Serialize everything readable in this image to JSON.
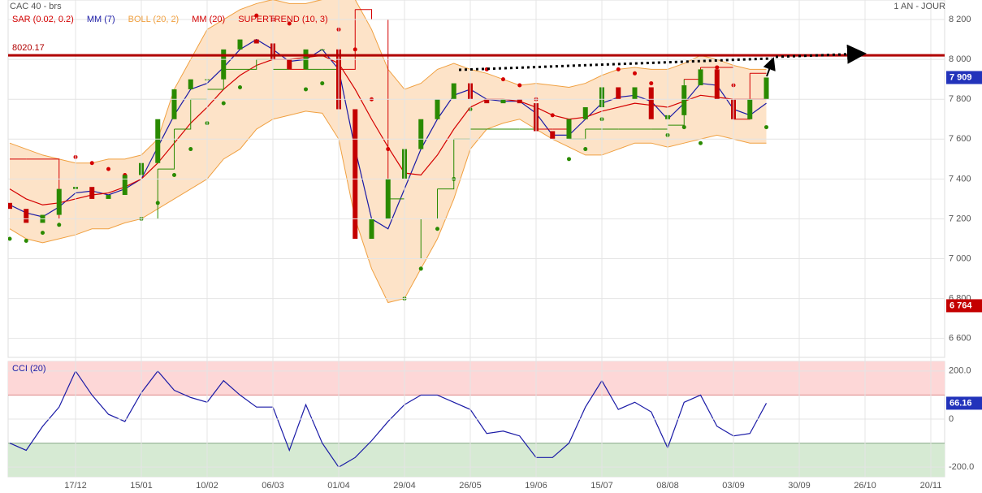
{
  "chart_data": [
    {
      "type": "candlestick",
      "title": "CAC 40 - brs",
      "subtitle": "1 AN - JOUR",
      "categories": [
        null,
        null,
        null,
        null,
        "17/12",
        null,
        null,
        null,
        "15/01",
        null,
        null,
        null,
        "10/02",
        null,
        null,
        null,
        "06/03",
        null,
        null,
        null,
        "01/04",
        null,
        null,
        null,
        "29/04",
        null,
        null,
        null,
        "26/05",
        null,
        null,
        null,
        "19/06",
        null,
        null,
        null,
        "15/07",
        null,
        null,
        null,
        "08/08",
        null,
        null,
        null,
        "03/09",
        null,
        null,
        null,
        "30/09",
        null,
        null,
        null,
        "26/10",
        null,
        null,
        null,
        "20/11"
      ],
      "open": [
        7280,
        7250,
        7180,
        7220,
        7350,
        7360,
        7300,
        7320,
        7420,
        7480,
        7700,
        7850,
        7900,
        7900,
        8050,
        8100,
        8080,
        8000,
        7950,
        8050,
        8050,
        7750,
        7100,
        7200,
        7400,
        7550,
        7700,
        7800,
        7880,
        7800,
        7780,
        7800,
        7780,
        7640,
        7600,
        7700,
        7760,
        7860,
        7800,
        7860,
        7700,
        7720,
        7870,
        7950,
        7800,
        7700,
        7800,
        null,
        null,
        null,
        null,
        null,
        null,
        null,
        null,
        null,
        null
      ],
      "close": [
        7250,
        7180,
        7220,
        7350,
        7360,
        7300,
        7320,
        7420,
        7480,
        7700,
        7850,
        7900,
        7900,
        8050,
        8100,
        8080,
        8000,
        7950,
        8050,
        8050,
        7750,
        7100,
        7200,
        7400,
        7550,
        7700,
        7800,
        7880,
        7800,
        7780,
        7800,
        7780,
        7640,
        7600,
        7700,
        7760,
        7860,
        7800,
        7860,
        7700,
        7720,
        7870,
        7950,
        7800,
        7700,
        7800,
        7909,
        null,
        null,
        null,
        null,
        null,
        null,
        null,
        null,
        null,
        null
      ],
      "up_color": "#2a8a00",
      "down_color": "#c40000",
      "series": [
        {
          "name": "SAR (0.02, 0.2)",
          "style": "dots",
          "color": "#d40000",
          "below_color": "#2a8a00",
          "values": [
            7100,
            7090,
            7130,
            7170,
            7510,
            7480,
            7450,
            7420,
            7200,
            7280,
            7420,
            7550,
            7680,
            7780,
            7860,
            8220,
            8200,
            8180,
            7850,
            7880,
            8150,
            8050,
            7800,
            7550,
            6800,
            6950,
            7150,
            7400,
            7750,
            7950,
            7900,
            7870,
            7800,
            7720,
            7500,
            7550,
            7700,
            7950,
            7930,
            7880,
            7620,
            7660,
            7580,
            7960,
            7870,
            7790,
            7660,
            null,
            null,
            null,
            null,
            null,
            null,
            null,
            null,
            null,
            null
          ]
        },
        {
          "name": "MM (7)",
          "style": "line",
          "color": "#1a1aa6",
          "values": [
            7270,
            7230,
            7210,
            7260,
            7330,
            7340,
            7320,
            7350,
            7400,
            7560,
            7720,
            7850,
            7880,
            7960,
            8050,
            8100,
            8050,
            7990,
            8000,
            8050,
            7950,
            7550,
            7200,
            7150,
            7350,
            7550,
            7700,
            7820,
            7850,
            7800,
            7790,
            7790,
            7730,
            7620,
            7620,
            7700,
            7780,
            7810,
            7820,
            7790,
            7700,
            7780,
            7880,
            7870,
            7750,
            7720,
            7780,
            null,
            null,
            null,
            null,
            null,
            null,
            null,
            null,
            null,
            null
          ]
        },
        {
          "name": "BOLL (20, 2)",
          "style": "band",
          "color": "#f0a040",
          "fill": "#fde3c8",
          "upper": [
            7580,
            7550,
            7520,
            7500,
            7480,
            7480,
            7500,
            7500,
            7520,
            7600,
            7850,
            8000,
            8150,
            8200,
            8250,
            8280,
            8300,
            8280,
            8280,
            8300,
            8300,
            8300,
            8150,
            7950,
            7850,
            7880,
            7950,
            7980,
            7950,
            7930,
            7900,
            7870,
            7880,
            7870,
            7860,
            7880,
            7920,
            7950,
            7960,
            7950,
            7950,
            7980,
            8020,
            8000,
            7970,
            7950,
            7950,
            null,
            null,
            null,
            null,
            null,
            null,
            null,
            null,
            null,
            null
          ],
          "lower": [
            7150,
            7100,
            7080,
            7100,
            7120,
            7150,
            7150,
            7180,
            7200,
            7250,
            7300,
            7350,
            7400,
            7500,
            7550,
            7650,
            7700,
            7720,
            7740,
            7730,
            7600,
            7200,
            6950,
            6780,
            6800,
            6950,
            7100,
            7300,
            7550,
            7650,
            7680,
            7700,
            7650,
            7600,
            7560,
            7520,
            7520,
            7550,
            7580,
            7580,
            7560,
            7580,
            7600,
            7620,
            7600,
            7580,
            7580,
            null,
            null,
            null,
            null,
            null,
            null,
            null,
            null,
            null,
            null
          ]
        },
        {
          "name": "MM (20)",
          "style": "line",
          "color": "#d40000",
          "values": [
            7350,
            7300,
            7270,
            7280,
            7300,
            7320,
            7330,
            7360,
            7400,
            7480,
            7580,
            7680,
            7760,
            7850,
            7920,
            7970,
            8000,
            8000,
            8010,
            8020,
            7980,
            7850,
            7700,
            7560,
            7430,
            7420,
            7520,
            7650,
            7760,
            7800,
            7800,
            7790,
            7760,
            7720,
            7700,
            7710,
            7740,
            7760,
            7780,
            7770,
            7760,
            7790,
            7820,
            7810,
            7800,
            7800,
            7800,
            null,
            null,
            null,
            null,
            null,
            null,
            null,
            null,
            null,
            null
          ]
        },
        {
          "name": "SUPERTREND (10, 3)",
          "style": "step",
          "color": "#d40000",
          "below_color": "#2a8a00",
          "values": [
            7500,
            7500,
            7500,
            7200,
            7200,
            7200,
            7200,
            7200,
            7200,
            7450,
            7650,
            7800,
            7850,
            7950,
            7950,
            8000,
            7950,
            7950,
            7950,
            7950,
            7950,
            8250,
            8200,
            7300,
            7000,
            7200,
            7350,
            7600,
            7650,
            7650,
            7650,
            7650,
            7650,
            7650,
            7600,
            7650,
            7650,
            7650,
            7650,
            7650,
            7670,
            7900,
            7960,
            7960,
            7700,
            7930,
            7930,
            null,
            null,
            null,
            null,
            null,
            null,
            null,
            null,
            null,
            null
          ]
        }
      ],
      "level_line": 8020.17,
      "last_label": {
        "value": 7909,
        "label": "7 909"
      },
      "min_label": {
        "value": 6764,
        "label": "6 764"
      },
      "ylim": [
        6505,
        8298
      ],
      "yticks": [
        {
          "value": 6600,
          "label": "6 600"
        },
        {
          "value": 6800,
          "label": "6 800"
        },
        {
          "value": 7000,
          "label": "7 000"
        },
        {
          "value": 7200,
          "label": "7 200"
        },
        {
          "value": 7400,
          "label": "7 400"
        },
        {
          "value": 7600,
          "label": "7 600"
        },
        {
          "value": 7800,
          "label": "7 800"
        },
        {
          "value": 8000,
          "label": "8 000"
        },
        {
          "value": 8200,
          "label": "8 200"
        }
      ],
      "grid": true
    },
    {
      "type": "line",
      "title": "CCI (20)",
      "color": "#1a1aa6",
      "values": [
        -100,
        -130,
        -30,
        50,
        200,
        100,
        20,
        -10,
        110,
        200,
        120,
        90,
        70,
        160,
        100,
        50,
        50,
        -130,
        60,
        -100,
        -200,
        -160,
        -90,
        -10,
        60,
        100,
        100,
        70,
        40,
        -60,
        -50,
        -70,
        -160,
        -160,
        -100,
        50,
        160,
        40,
        70,
        30,
        -120,
        70,
        100,
        -30,
        -70,
        -60,
        66.16,
        null,
        null,
        null,
        null,
        null,
        null,
        null,
        null,
        null,
        null
      ],
      "last_label": 66.16,
      "zone_levels": [
        -100,
        100
      ],
      "zone_colors": [
        "#d6ead3",
        "#fdd7d7"
      ],
      "ylim": [
        -240,
        240
      ],
      "yticks": [
        {
          "value": -200,
          "label": "-200.0"
        },
        0,
        {
          "value": 200,
          "label": "200.0"
        }
      ],
      "grid": true
    }
  ]
}
